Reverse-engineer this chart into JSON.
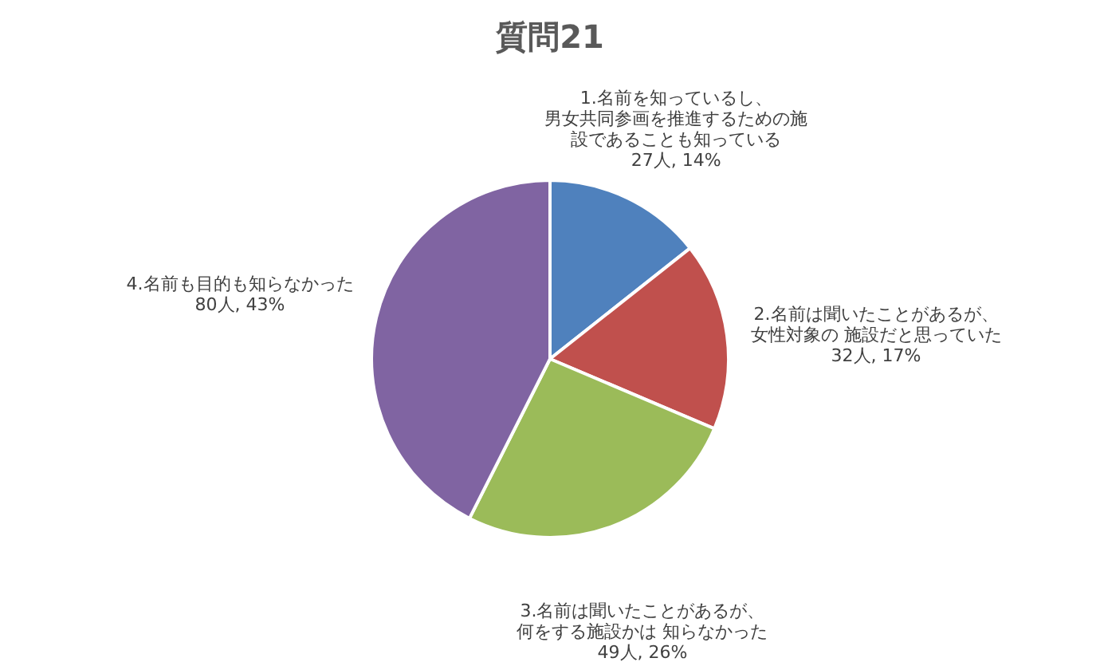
{
  "chart_data": {
    "type": "pie",
    "title": "質問21",
    "categories": [
      "1.名前を知っているし、男女共同参画を推進するための施設であることも知っている",
      "2.名前は聞いたことがあるが、女性対象の 施設だと思っていた",
      "3.名前は聞いたことがあるが、何をする施設かは 知らなかった",
      "4.名前も目的も知らなかった"
    ],
    "values": [
      27,
      32,
      49,
      80
    ],
    "value_labels": [
      "27人, 14%",
      "32人, 17%",
      "49人, 26%",
      "80人, 43%"
    ],
    "colors": [
      "#4f81bd",
      "#c0504d",
      "#9bbb59",
      "#8064a2"
    ],
    "legend": false
  }
}
